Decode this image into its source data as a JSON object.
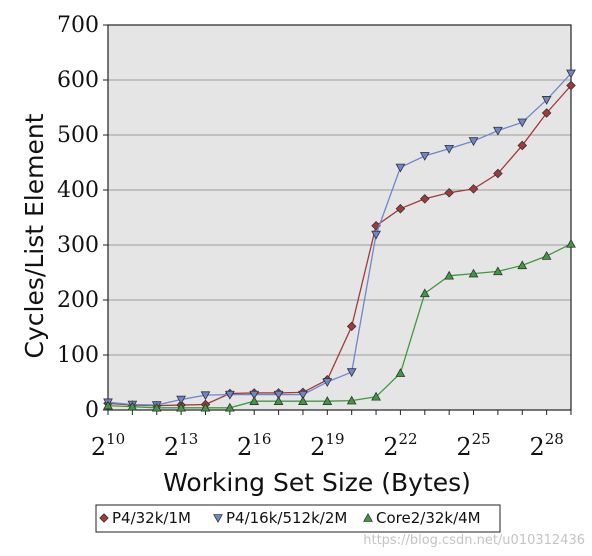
{
  "chart_data": {
    "type": "line",
    "xlabel": "Working Set Size (Bytes)",
    "ylabel": "Cycles/List Element",
    "x_scale": "log2",
    "x_ticks": [
      {
        "base": "2",
        "exp": "10",
        "value": 10
      },
      {
        "base": "2",
        "exp": "13",
        "value": 13
      },
      {
        "base": "2",
        "exp": "16",
        "value": 16
      },
      {
        "base": "2",
        "exp": "19",
        "value": 19
      },
      {
        "base": "2",
        "exp": "22",
        "value": 22
      },
      {
        "base": "2",
        "exp": "25",
        "value": 25
      },
      {
        "base": "2",
        "exp": "28",
        "value": 28
      }
    ],
    "xlim": [
      10,
      29
    ],
    "y_ticks": [
      "0",
      "100",
      "200",
      "300",
      "400",
      "500",
      "600",
      "700"
    ],
    "ylim": [
      0,
      700
    ],
    "grid": "horizontal",
    "legend_position": "bottom",
    "x": [
      10,
      11,
      12,
      13,
      14,
      15,
      16,
      17,
      18,
      19,
      20,
      21,
      22,
      23,
      24,
      25,
      26,
      27,
      28,
      29
    ],
    "series": [
      {
        "name": "P4/32k/1M",
        "color": "#a33a3a",
        "marker": "diamond",
        "values": [
          12,
          9,
          8,
          9,
          10,
          30,
          31,
          31,
          32,
          55,
          152,
          335,
          366,
          384,
          395,
          402,
          430,
          481,
          540,
          590
        ]
      },
      {
        "name": "P4/16k/512k/2M",
        "color": "#6f86cf",
        "marker": "triangle-down",
        "values": [
          14,
          10,
          9,
          19,
          27,
          28,
          28,
          28,
          28,
          51,
          69,
          319,
          441,
          462,
          475,
          489,
          508,
          523,
          564,
          612
        ]
      },
      {
        "name": "Core2/32k/4M",
        "color": "#3f9a3f",
        "marker": "triangle-up",
        "values": [
          8,
          6,
          4,
          4,
          4,
          4,
          16,
          16,
          16,
          16,
          17,
          24,
          67,
          212,
          244,
          248,
          252,
          263,
          280,
          302
        ]
      }
    ]
  },
  "watermark": "https://blog.csdn.net/u010312436"
}
